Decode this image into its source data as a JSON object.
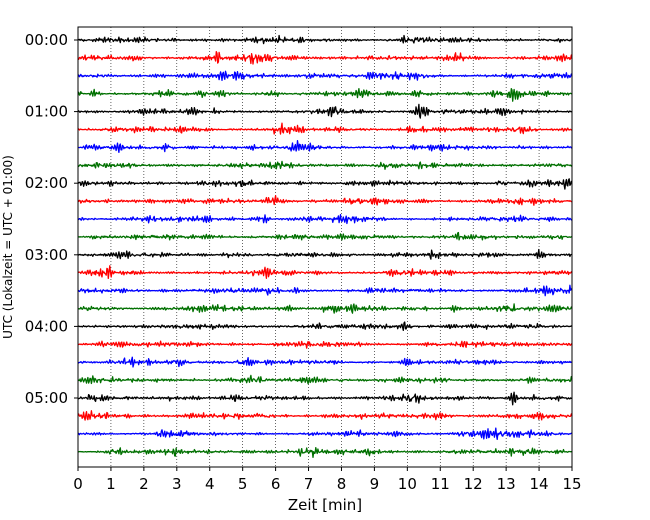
{
  "chart_data": {
    "type": "line",
    "title": "",
    "xlabel": "Zeit  [min]",
    "ylabel": "UTC (Lokalzeit = UTC + 01:00)",
    "xlim": [
      0,
      15
    ],
    "x_ticks": [
      "0",
      "1",
      "2",
      "3",
      "4",
      "5",
      "6",
      "7",
      "8",
      "9",
      "10",
      "11",
      "12",
      "13",
      "14",
      "15"
    ],
    "y_ticks": [
      "00:00",
      "01:00",
      "02:00",
      "03:00",
      "04:00",
      "05:00"
    ],
    "grid": "vertical dotted lines at each minute",
    "trace_interval_minutes": 15,
    "series_color_cycle": [
      "#000000",
      "#ff0000",
      "#0000ff",
      "#007000"
    ],
    "series": [
      {
        "start_utc": "00:00",
        "color": "#000000"
      },
      {
        "start_utc": "00:15",
        "color": "#ff0000"
      },
      {
        "start_utc": "00:30",
        "color": "#0000ff"
      },
      {
        "start_utc": "00:45",
        "color": "#007000"
      },
      {
        "start_utc": "01:00",
        "color": "#000000"
      },
      {
        "start_utc": "01:15",
        "color": "#ff0000"
      },
      {
        "start_utc": "01:30",
        "color": "#0000ff"
      },
      {
        "start_utc": "01:45",
        "color": "#007000"
      },
      {
        "start_utc": "02:00",
        "color": "#000000"
      },
      {
        "start_utc": "02:15",
        "color": "#ff0000"
      },
      {
        "start_utc": "02:30",
        "color": "#0000ff"
      },
      {
        "start_utc": "02:45",
        "color": "#007000"
      },
      {
        "start_utc": "03:00",
        "color": "#000000"
      },
      {
        "start_utc": "03:15",
        "color": "#ff0000"
      },
      {
        "start_utc": "03:30",
        "color": "#0000ff"
      },
      {
        "start_utc": "03:45",
        "color": "#007000"
      },
      {
        "start_utc": "04:00",
        "color": "#000000"
      },
      {
        "start_utc": "04:15",
        "color": "#ff0000"
      },
      {
        "start_utc": "04:30",
        "color": "#0000ff"
      },
      {
        "start_utc": "04:45",
        "color": "#007000"
      },
      {
        "start_utc": "05:00",
        "color": "#000000"
      },
      {
        "start_utc": "05:15",
        "color": "#ff0000"
      },
      {
        "start_utc": "05:30",
        "color": "#0000ff"
      },
      {
        "start_utc": "05:45",
        "color": "#007000"
      }
    ]
  }
}
